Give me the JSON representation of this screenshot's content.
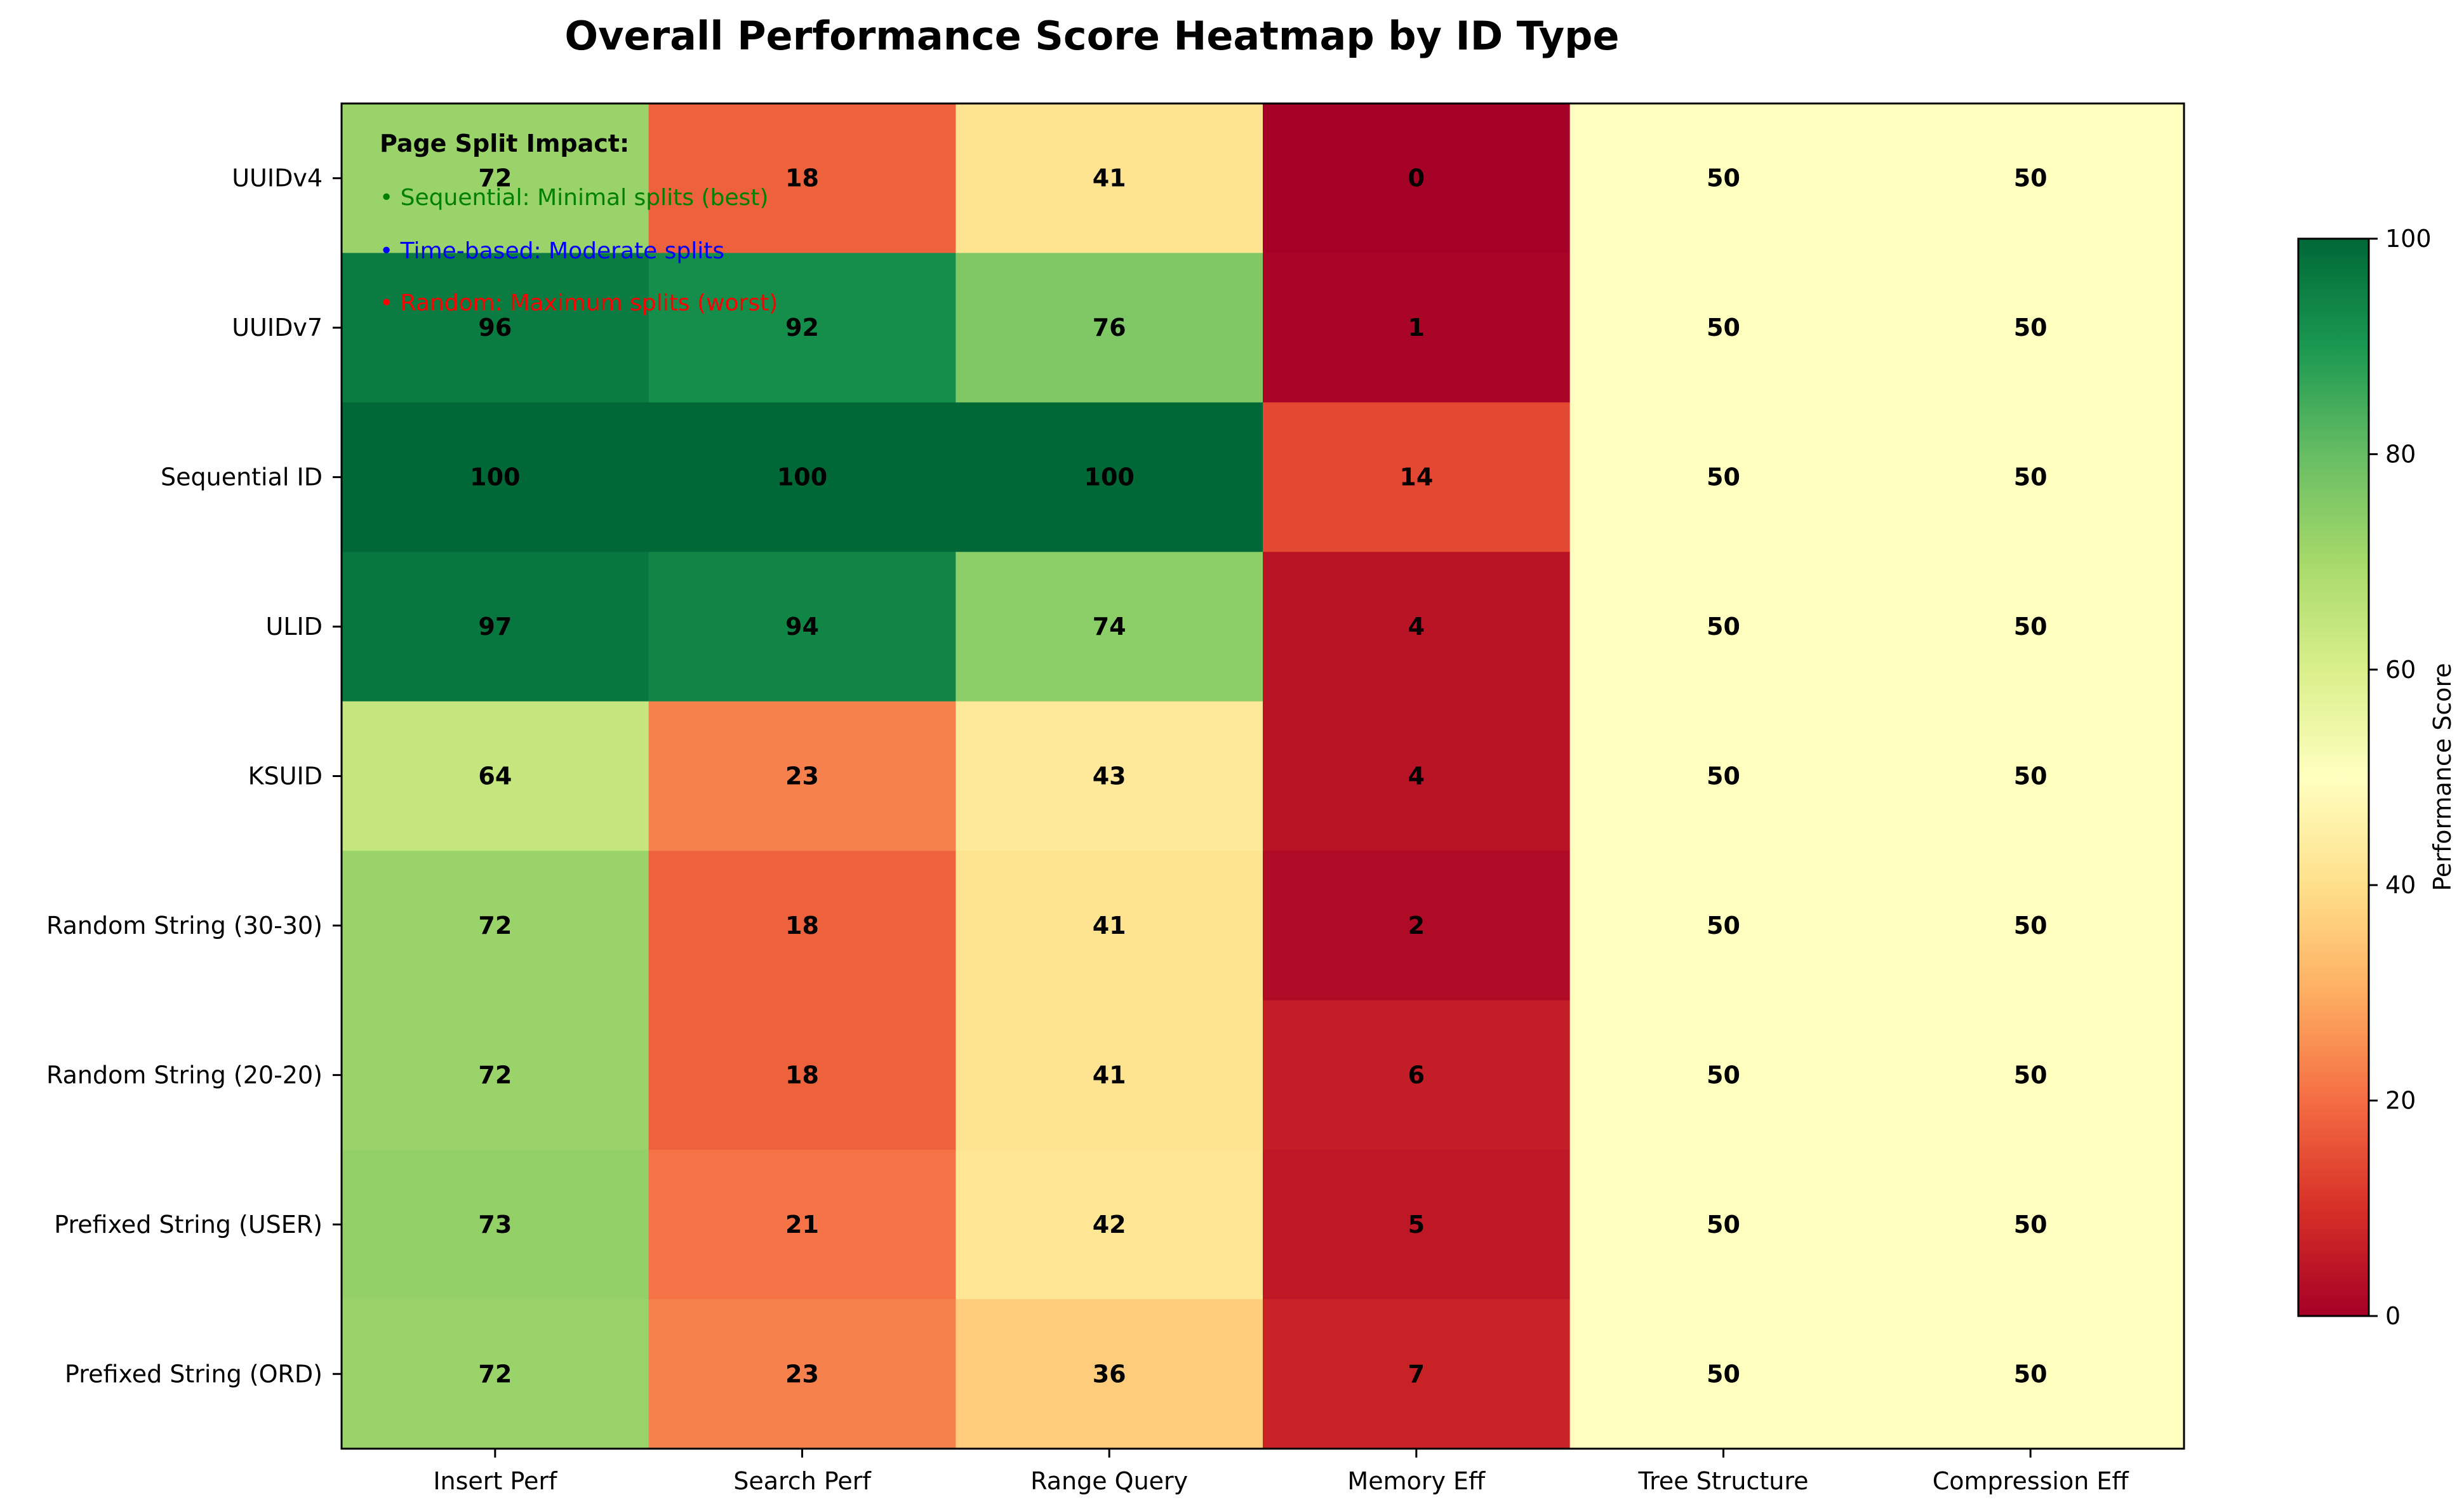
{
  "chart_data": {
    "type": "heatmap",
    "title": "Overall Performance Score Heatmap by ID Type",
    "columns": [
      "Insert Perf",
      "Search Perf",
      "Range Query",
      "Memory Eff",
      "Tree Structure",
      "Compression Eff"
    ],
    "rows": [
      "UUIDv4",
      "UUIDv7",
      "Sequential ID",
      "ULID",
      "KSUID",
      "Random String (30-30)",
      "Random String (20-20)",
      "Prefixed String (USER)",
      "Prefixed String (ORD)"
    ],
    "values": [
      [
        72,
        18,
        41,
        0,
        50,
        50
      ],
      [
        96,
        92,
        76,
        1,
        50,
        50
      ],
      [
        100,
        100,
        100,
        14,
        50,
        50
      ],
      [
        97,
        94,
        74,
        4,
        50,
        50
      ],
      [
        64,
        23,
        43,
        4,
        50,
        50
      ],
      [
        72,
        18,
        41,
        2,
        50,
        50
      ],
      [
        72,
        18,
        41,
        6,
        50,
        50
      ],
      [
        73,
        21,
        42,
        5,
        50,
        50
      ],
      [
        72,
        23,
        36,
        7,
        50,
        50
      ]
    ],
    "colormap": "RdYlGn",
    "vmin": 0,
    "vmax": 100,
    "colorbar": {
      "label": "Performance Score",
      "ticks": [
        "0",
        "20",
        "40",
        "60",
        "80",
        "100"
      ]
    },
    "annotation": {
      "heading": "Page Split Impact:",
      "lines": [
        {
          "text": "• Sequential: Minimal splits (best)",
          "color": "#008000"
        },
        {
          "text": "• Time-based: Moderate splits",
          "color": "#0000ff"
        },
        {
          "text": "• Random: Maximum splits (worst)",
          "color": "#ff0000"
        }
      ]
    }
  }
}
